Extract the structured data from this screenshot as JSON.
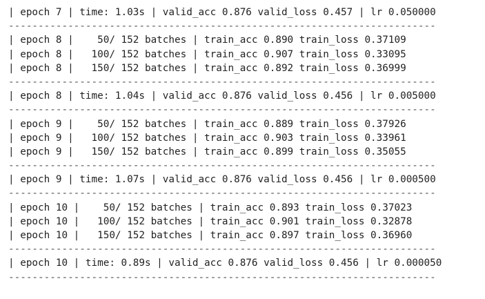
{
  "lines": [
    "| epoch 7 | time: 1.03s | valid_acc 0.876 valid_loss 0.457 | lr 0.050000",
    "------------------------------------------------------------------------",
    "| epoch 8 |    50/ 152 batches | train_acc 0.890 train_loss 0.37109",
    "| epoch 8 |   100/ 152 batches | train_acc 0.907 train_loss 0.33095",
    "| epoch 8 |   150/ 152 batches | train_acc 0.892 train_loss 0.36999",
    "------------------------------------------------------------------------",
    "| epoch 8 | time: 1.04s | valid_acc 0.876 valid_loss 0.456 | lr 0.005000",
    "------------------------------------------------------------------------",
    "| epoch 9 |    50/ 152 batches | train_acc 0.889 train_loss 0.37926",
    "| epoch 9 |   100/ 152 batches | train_acc 0.903 train_loss 0.33961",
    "| epoch 9 |   150/ 152 batches | train_acc 0.899 train_loss 0.35055",
    "------------------------------------------------------------------------",
    "| epoch 9 | time: 1.07s | valid_acc 0.876 valid_loss 0.456 | lr 0.000500",
    "------------------------------------------------------------------------",
    "| epoch 10 |    50/ 152 batches | train_acc 0.893 train_loss 0.37023",
    "| epoch 10 |   100/ 152 batches | train_acc 0.901 train_loss 0.32878",
    "| epoch 10 |   150/ 152 batches | train_acc 0.897 train_loss 0.36960",
    "------------------------------------------------------------------------",
    "| epoch 10 | time: 0.89s | valid_acc 0.876 valid_loss 0.456 | lr 0.000050",
    "------------------------------------------------------------------------"
  ]
}
